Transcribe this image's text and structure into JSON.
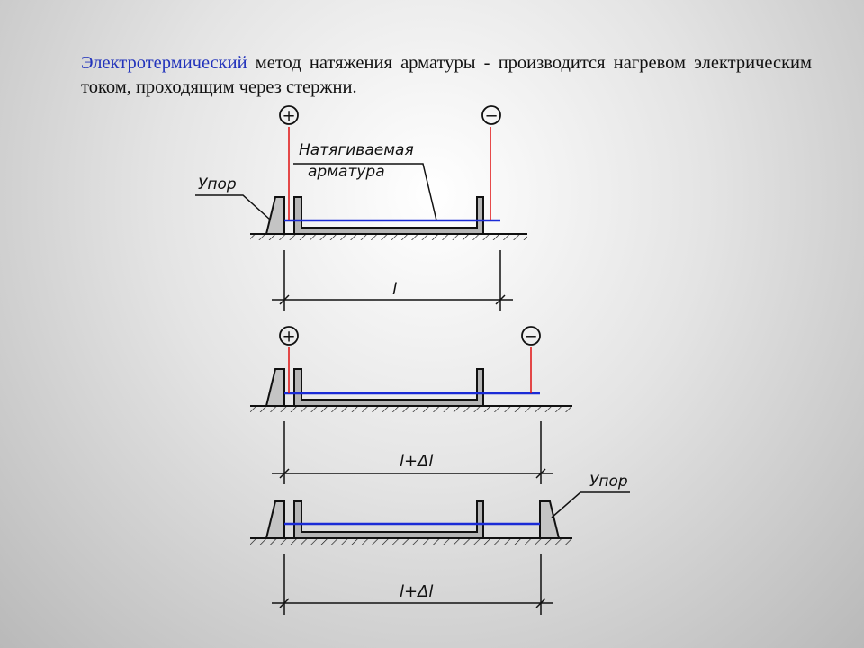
{
  "intro": {
    "term": "Электротермический",
    "rest": " метод натяжения арматуры - производится нагревом электрическим током, проходящим через стержни."
  },
  "labels": {
    "plus": "+",
    "minus": "−",
    "bar_line1": "Натягиваемая",
    "bar_line2": "арматура",
    "stop": "Упор",
    "dim1": "l",
    "dim2": "l+Δl",
    "dim3": "l+Δl"
  },
  "colors": {
    "rebar": "#1a2bd6",
    "wire": "#e01010",
    "form": "#b5b5b5",
    "line": "#111111"
  },
  "stages": 3
}
